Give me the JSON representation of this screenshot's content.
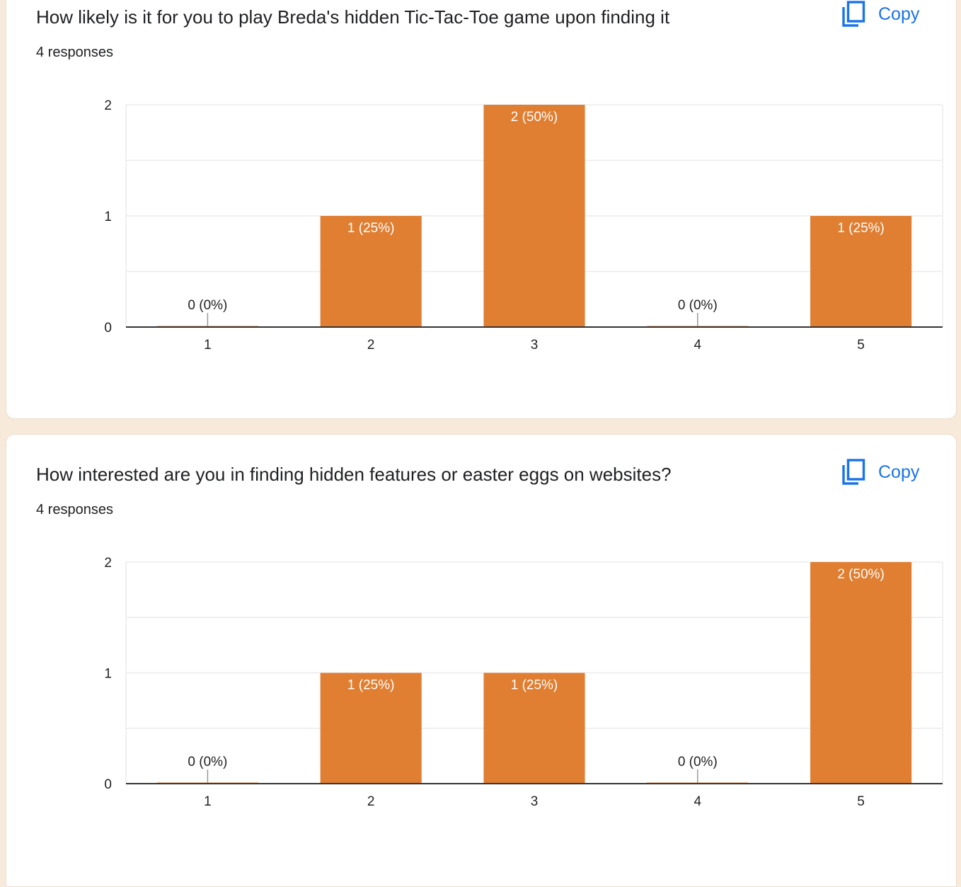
{
  "colors": {
    "bar": "#e07e31",
    "copy_blue": "#1a73e8",
    "label_inside": "#ffffff",
    "label_outside": "#222222",
    "gridline": "#ebebeb",
    "axis": "#333333"
  },
  "questions": [
    {
      "title": "How likely is it for you to play Breda's hidden Tic-Tac-Toe game upon finding it",
      "responses": "4 responses",
      "copy_label": "Copy",
      "copy_icon": "copy-icon"
    },
    {
      "title": "How interested are you in finding hidden features or easter eggs on websites?",
      "responses": "4 responses",
      "copy_label": "Copy",
      "copy_icon": "copy-icon"
    }
  ],
  "chart_data": [
    {
      "type": "bar",
      "title": "How likely is it for you to play Breda's hidden Tic-Tac-Toe game upon finding it",
      "categories": [
        "1",
        "2",
        "3",
        "4",
        "5"
      ],
      "values": [
        0,
        1,
        2,
        0,
        1
      ],
      "data_labels": [
        "0 (0%)",
        "1 (25%)",
        "2 (50%)",
        "0 (0%)",
        "1 (25%)"
      ],
      "yticks": [
        "0",
        "1",
        "2"
      ],
      "ylim": [
        0,
        2
      ],
      "grid": true,
      "legend": "none"
    },
    {
      "type": "bar",
      "title": "How interested are you in finding hidden features or easter eggs on websites?",
      "categories": [
        "1",
        "2",
        "3",
        "4",
        "5"
      ],
      "values": [
        0,
        1,
        1,
        0,
        2
      ],
      "data_labels": [
        "0 (0%)",
        "1 (25%)",
        "1 (25%)",
        "0 (0%)",
        "2 (50%)"
      ],
      "yticks": [
        "0",
        "1",
        "2"
      ],
      "ylim": [
        0,
        2
      ],
      "grid": true,
      "legend": "none"
    }
  ]
}
